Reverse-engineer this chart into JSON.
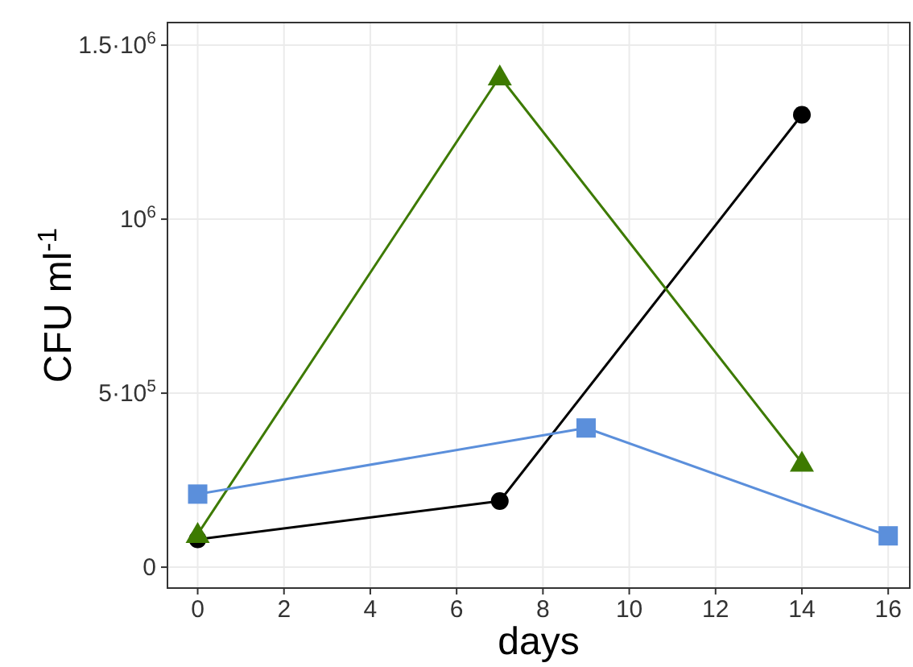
{
  "chart_data": {
    "type": "line",
    "xlabel": "days",
    "ylabel": "CFU ml$^{-1}$",
    "xlim": [
      -0.7,
      16.5
    ],
    "ylim": [
      -60000,
      1565000
    ],
    "xticks": [
      0,
      2,
      4,
      6,
      8,
      10,
      12,
      14,
      16
    ],
    "yticks": [
      0,
      {
        "value": 500000,
        "label": "5·10$^{5}$"
      },
      {
        "value": 1000000,
        "label": "10$^{6}$"
      },
      {
        "value": 1500000,
        "label": "1.5·10$^{6}$"
      }
    ],
    "grid": true,
    "line_style": "solid",
    "series": [
      {
        "color": "#000000",
        "marker": "circle",
        "x": [
          0,
          7,
          14
        ],
        "values": [
          80000,
          190000,
          1300000
        ]
      },
      {
        "color": "#3d7a00",
        "marker": "triangle",
        "x": [
          0,
          7,
          14
        ],
        "values": [
          95000,
          1410000,
          300000
        ]
      },
      {
        "color": "#5b8fdb",
        "marker": "square",
        "x": [
          0,
          9,
          16
        ],
        "values": [
          210000,
          400000,
          90000
        ]
      }
    ]
  }
}
